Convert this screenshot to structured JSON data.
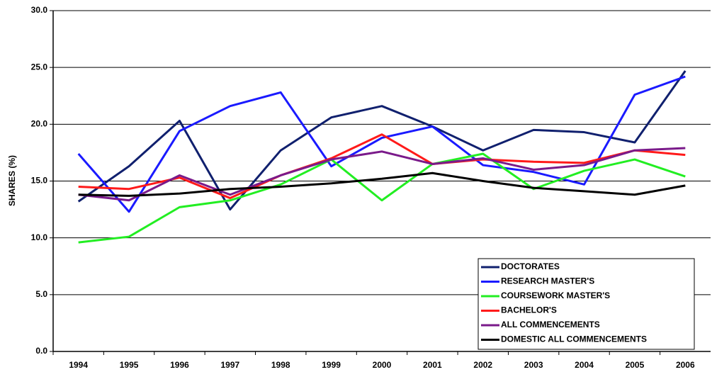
{
  "chart_data": {
    "type": "line",
    "y_label": "SHARES (%)",
    "categories": [
      "1994",
      "1995",
      "1996",
      "1997",
      "1998",
      "1999",
      "2000",
      "2001",
      "2002",
      "2003",
      "2004",
      "2005",
      "2006"
    ],
    "series": [
      {
        "name": "DOCTORATES",
        "color": "#10206e",
        "values": [
          13.2,
          16.3,
          20.3,
          12.5,
          17.7,
          20.6,
          21.6,
          19.8,
          17.7,
          19.5,
          19.3,
          18.4,
          24.7
        ]
      },
      {
        "name": "RESEARCH MASTER'S",
        "color": "#1a1aff",
        "values": [
          17.4,
          12.3,
          19.4,
          21.6,
          22.8,
          16.3,
          18.8,
          19.8,
          16.4,
          15.8,
          14.7,
          22.6,
          24.2
        ]
      },
      {
        "name": "COURSEWORK MASTER'S",
        "color": "#22ee22",
        "values": [
          9.6,
          10.1,
          12.7,
          13.3,
          14.7,
          16.9,
          13.3,
          16.5,
          17.4,
          14.3,
          15.9,
          16.9,
          15.4
        ]
      },
      {
        "name": "BACHELOR'S",
        "color": "#ff1a1a",
        "values": [
          14.5,
          14.3,
          15.3,
          13.5,
          15.5,
          17.0,
          19.1,
          16.5,
          16.9,
          16.7,
          16.6,
          17.7,
          17.3
        ]
      },
      {
        "name": "ALL COMMENCEMENTS",
        "color": "#7a1a8a",
        "values": [
          13.8,
          13.3,
          15.5,
          13.8,
          15.5,
          16.9,
          17.6,
          16.5,
          17.0,
          16.0,
          16.4,
          17.7,
          17.9
        ]
      },
      {
        "name": "DOMESTIC ALL COMMENCEMENTS",
        "color": "#000000",
        "values": [
          13.8,
          13.7,
          13.9,
          14.3,
          14.5,
          14.8,
          15.2,
          15.7,
          15.0,
          14.4,
          14.1,
          13.8,
          14.6
        ]
      }
    ],
    "ylim": [
      0,
      30
    ],
    "yticks": [
      {
        "value": 0,
        "label": "0.0"
      },
      {
        "value": 5,
        "label": "5.0"
      },
      {
        "value": 10,
        "label": "10.0"
      },
      {
        "value": 15,
        "label": "15.0"
      },
      {
        "value": 20,
        "label": "20.0"
      },
      {
        "value": 25,
        "label": "25.0"
      },
      {
        "value": 30,
        "label": "30.0"
      }
    ],
    "grid": true,
    "legend": "bottom-right"
  }
}
